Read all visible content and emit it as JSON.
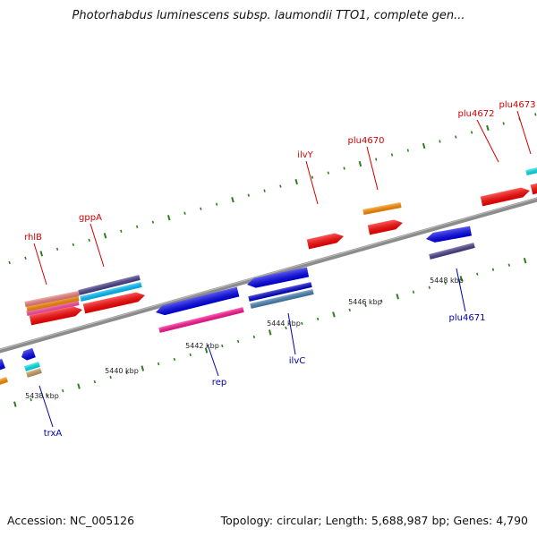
{
  "title": "Photorhabdus luminescens subsp. laumondii TTO1, complete gen...",
  "footer": {
    "accession": "Accession: NC_005126",
    "topology": "Topology: circular; Length: 5,688,987 bp; Genes: 4,790"
  },
  "colors": {
    "backbone": "#8c8c8c",
    "tick": "#2e7d1e",
    "label_top": "#d40000",
    "label_bottom": "#0000aa",
    "scale_label": "#222222"
  },
  "scale_labels": [
    {
      "kbp": 5438,
      "text": "5438 kbp"
    },
    {
      "kbp": 5440,
      "text": "5440 kbp"
    },
    {
      "kbp": 5442,
      "text": "5442 kbp"
    },
    {
      "kbp": 5444,
      "text": "5444 kbp"
    },
    {
      "kbp": 5446,
      "text": "5446 kbp"
    },
    {
      "kbp": 5448,
      "text": "5448 kbp"
    }
  ],
  "gene_labels": [
    {
      "text": "rhlB",
      "strand": "top"
    },
    {
      "text": "gppA",
      "strand": "top"
    },
    {
      "text": "ilvY",
      "strand": "top"
    },
    {
      "text": "plu4670",
      "strand": "top"
    },
    {
      "text": "plu4672",
      "strand": "top"
    },
    {
      "text": "plu4673",
      "strand": "top"
    },
    {
      "text": "trxA",
      "strand": "bottom"
    },
    {
      "text": "rep",
      "strand": "bottom"
    },
    {
      "text": "ilvC",
      "strand": "bottom"
    },
    {
      "text": "plu4671",
      "strand": "bottom"
    }
  ],
  "features": [
    {
      "id": "f-rhlB",
      "ring": "top-1",
      "color": "#ff0000",
      "arrow": true
    },
    {
      "id": "f-rhlB-cds",
      "ring": "top-2",
      "color": "#ff4fa7",
      "arrow": false
    },
    {
      "id": "f-rhlB-a",
      "ring": "top-3",
      "color": "#ff8c00",
      "arrow": false
    },
    {
      "id": "f-rhlB-b",
      "ring": "top-4",
      "color": "#f08080",
      "arrow": false
    },
    {
      "id": "f-gppA",
      "ring": "top-1",
      "color": "#ff0000",
      "arrow": true
    },
    {
      "id": "f-gppA-c",
      "ring": "top-2",
      "color": "#00bfff",
      "arrow": false
    },
    {
      "id": "f-gppA-d",
      "ring": "top-3",
      "color": "#483d8b",
      "arrow": false
    },
    {
      "id": "f-ilvY",
      "ring": "top-1",
      "color": "#ff0000",
      "arrow": true
    },
    {
      "id": "f-plu4670",
      "ring": "top-1",
      "color": "#ff0000",
      "arrow": true
    },
    {
      "id": "f-plu4670b",
      "ring": "top-2",
      "color": "#ff8c00",
      "arrow": false
    },
    {
      "id": "f-plu4672",
      "ring": "top-1",
      "color": "#ff0000",
      "arrow": true
    },
    {
      "id": "f-plu4673",
      "ring": "top-1",
      "color": "#ff0000",
      "arrow": true
    },
    {
      "id": "f-plu4673b",
      "ring": "top-2",
      "color": "#00e5ee",
      "arrow": false
    },
    {
      "id": "f-rep",
      "ring": "bot-1",
      "color": "#0000ee",
      "arrow": true
    },
    {
      "id": "f-rep-b",
      "ring": "bot-2",
      "color": "#ff1493",
      "arrow": false
    },
    {
      "id": "f-ilvC",
      "ring": "bot-1",
      "color": "#0000ee",
      "arrow": true
    },
    {
      "id": "f-ilvC-b",
      "ring": "bot-2",
      "color": "#0000cd",
      "arrow": false
    },
    {
      "id": "f-ilvC-c",
      "ring": "bot-3",
      "color": "#4682b4",
      "arrow": false
    },
    {
      "id": "f-plu4671",
      "ring": "bot-1",
      "color": "#0000ee",
      "arrow": true
    },
    {
      "id": "f-plu4671b",
      "ring": "bot-2",
      "color": "#483d8b",
      "arrow": false
    },
    {
      "id": "f-trxA",
      "ring": "bot-1",
      "color": "#0000ee",
      "arrow": true
    },
    {
      "id": "f-trxA-b",
      "ring": "bot-2",
      "color": "#00e5ee",
      "arrow": false
    },
    {
      "id": "f-trxA-c",
      "ring": "bot-3",
      "color": "#c8a060",
      "arrow": false
    },
    {
      "id": "f-left-1",
      "ring": "bot-1",
      "color": "#0000ee",
      "arrow": true
    },
    {
      "id": "f-left-2",
      "ring": "bot-2",
      "color": "#ff8c00",
      "arrow": false
    }
  ]
}
